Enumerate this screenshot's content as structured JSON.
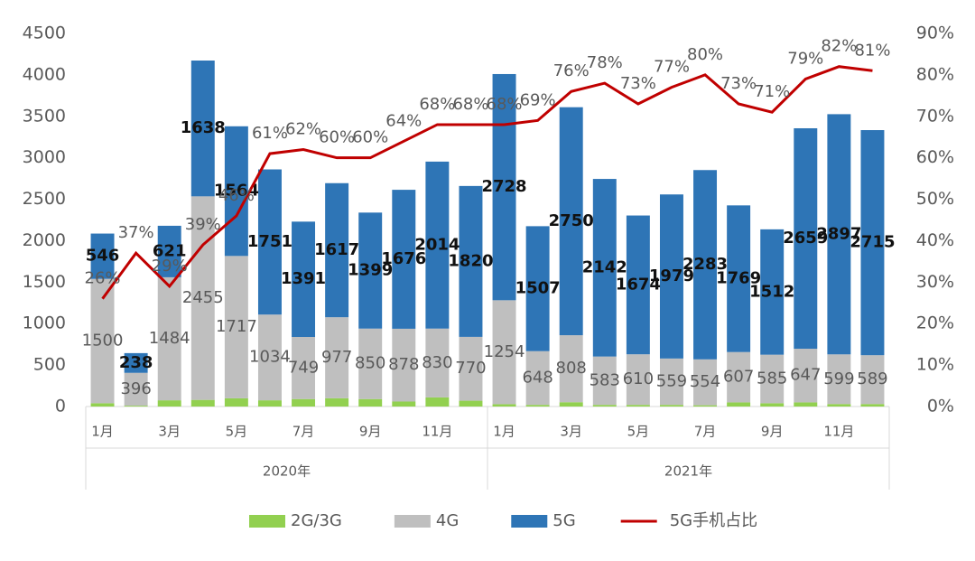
{
  "chart_data": {
    "type": "bar",
    "categories": [
      "1月",
      null,
      "3月",
      null,
      "5月",
      null,
      "7月",
      null,
      "9月",
      null,
      "11月",
      null,
      "1月",
      null,
      "3月",
      null,
      "5月",
      null,
      "7月",
      null,
      "9月",
      null,
      "11月",
      null
    ],
    "x_groups": [
      "2020年",
      "2021年"
    ],
    "series": [
      {
        "name": "2G/3G",
        "color": "#92d050",
        "values": [
          40,
          10,
          75,
          80,
          99,
          75,
          90,
          100,
          90,
          60,
          110,
          70,
          28,
          20,
          52,
          20,
          20,
          20,
          15,
          50,
          40,
          50,
          30,
          30
        ]
      },
      {
        "name": "4G",
        "color": "#bfbfbf",
        "values": [
          1500,
          396,
          1484,
          2455,
          1717,
          1034,
          749,
          977,
          850,
          878,
          830,
          770,
          1254,
          648,
          808,
          583,
          610,
          559,
          554,
          607,
          585,
          647,
          599,
          589
        ]
      },
      {
        "name": "5G",
        "color": "#2e75b6",
        "values": [
          546,
          238,
          621,
          1638,
          1564,
          1751,
          1391,
          1617,
          1399,
          1676,
          2014,
          1820,
          2728,
          1507,
          2750,
          2142,
          1674,
          1979,
          2283,
          1769,
          1512,
          2659,
          2897,
          2715
        ]
      },
      {
        "name": "5G手机占比",
        "type": "line",
        "axis": "y2",
        "color": "#c00000",
        "values": [
          26,
          37,
          29,
          39,
          46,
          61,
          62,
          60,
          60,
          64,
          68,
          68,
          68,
          69,
          76,
          78,
          73,
          77,
          80,
          73,
          71,
          79,
          82,
          81
        ],
        "value_labels": [
          "26%",
          "37%",
          "29%",
          "39%",
          "46%",
          "61%",
          "62%",
          "60%",
          "60%",
          "64%",
          "68%",
          "68%",
          "68%",
          "69%",
          "76%",
          "78%",
          "73%",
          "77%",
          "80%",
          "73%",
          "71%",
          "79%",
          "82%",
          "81%"
        ]
      }
    ],
    "ylim": [
      0,
      4500
    ],
    "yticks": [
      0,
      500,
      1000,
      1500,
      2000,
      2500,
      3000,
      3500,
      4000,
      4500
    ],
    "y2lim": [
      0,
      90
    ],
    "y2ticks": [
      {
        "value": 0,
        "label": "0%"
      },
      {
        "value": 10,
        "label": "10%"
      },
      {
        "value": 20,
        "label": "20%"
      },
      {
        "value": 30,
        "label": "30%"
      },
      {
        "value": 40,
        "label": "40%"
      },
      {
        "value": 50,
        "label": "50%"
      },
      {
        "value": 60,
        "label": "60%"
      },
      {
        "value": 70,
        "label": "70%"
      },
      {
        "value": 80,
        "label": "80%"
      },
      {
        "value": 90,
        "label": "90%"
      }
    ],
    "legend": "bottom"
  }
}
